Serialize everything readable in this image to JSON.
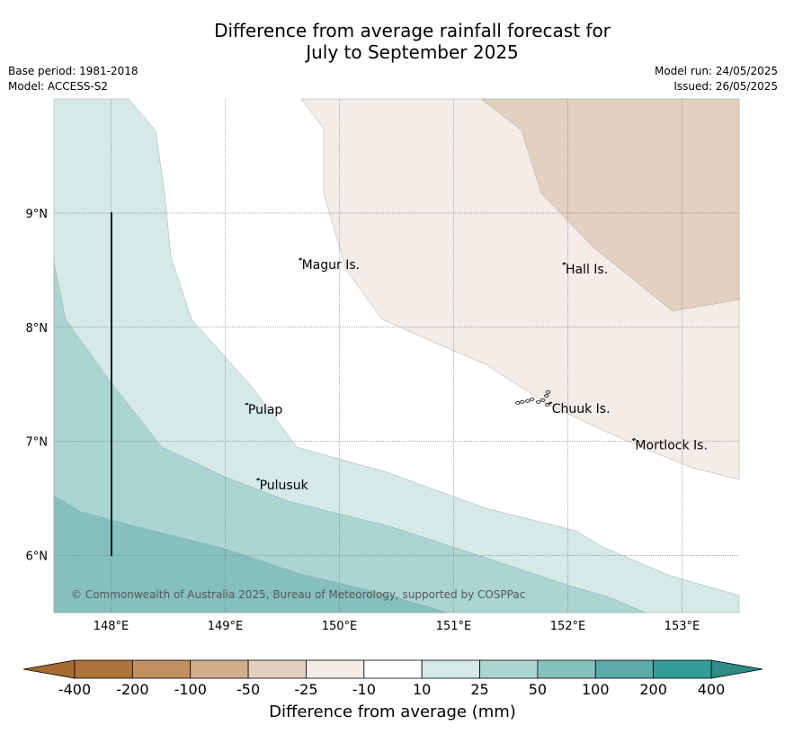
{
  "header": {
    "title_line1": "Difference from average rainfall forecast for",
    "title_line2": "July to September 2025",
    "base_period": "Base period: 1981-2018",
    "model": "Model: ACCESS-S2",
    "model_run": "Model run: 24/05/2025",
    "issued": "Issued: 26/05/2025"
  },
  "map": {
    "extent": {
      "lon": [
        147.5,
        153.5
      ],
      "lat": [
        5.5,
        10.0
      ]
    },
    "lon_ticks": [
      148,
      149,
      150,
      151,
      152,
      153
    ],
    "lon_tick_labels": [
      "148°E",
      "149°E",
      "150°E",
      "151°E",
      "152°E",
      "153°E"
    ],
    "lat_ticks": [
      6,
      7,
      8,
      9
    ],
    "lat_tick_labels": [
      "6°N",
      "7°N",
      "8°N",
      "9°N"
    ],
    "places": [
      {
        "name": "Magur Is.",
        "lon": 149.67,
        "lat": 8.55
      },
      {
        "name": "Hall Is.",
        "lon": 151.98,
        "lat": 8.51
      },
      {
        "name": "Pulap",
        "lon": 149.2,
        "lat": 7.28
      },
      {
        "name": "Chuuk Is.",
        "lon": 151.86,
        "lat": 7.29
      },
      {
        "name": "Mortlock Is.",
        "lon": 152.59,
        "lat": 6.97
      },
      {
        "name": "Pulusuk",
        "lon": 149.3,
        "lat": 6.62
      }
    ],
    "copyright": "© Commonwealth of Australia 2025, Bureau of Meteorology, supported by COSPPac",
    "colors": {
      "above_10_25": "#d5e9e7",
      "above_25_50": "#abd5d3",
      "above_50_100": "#85c0be",
      "below_25_10": "#f4ece7",
      "below_50_25": "#e3d0c0"
    }
  },
  "colorbar": {
    "title": "Difference from average (mm)",
    "labels": [
      "-400",
      "-200",
      "-100",
      "-50",
      "-25",
      "-10",
      "10",
      "25",
      "50",
      "100",
      "200",
      "400"
    ],
    "low_extend_color": "#a46a2f",
    "high_extend_color": "#2e8b87",
    "colors": [
      "#ad733a",
      "#c0915f",
      "#d2af8c",
      "#e3d0c0",
      "#f4ece7",
      "#ffffff",
      "#d5e9e7",
      "#abd5d3",
      "#85c0be",
      "#5aaba8",
      "#339c98"
    ]
  }
}
